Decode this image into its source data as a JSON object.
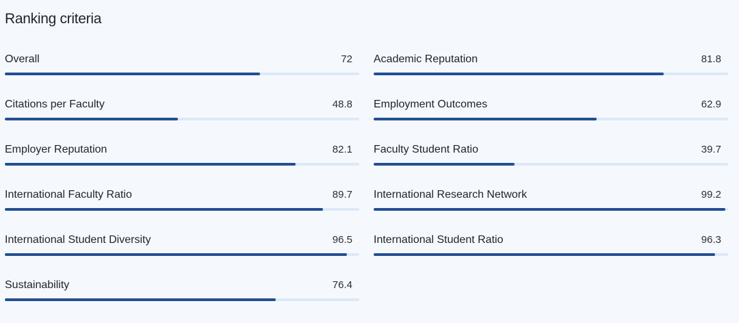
{
  "section": {
    "title": "Ranking criteria"
  },
  "colors": {
    "bar_fill": "#234f93",
    "bar_track": "#dce9f7",
    "background": "#f5f9fe"
  },
  "criteria": [
    {
      "label": "Overall",
      "value": "72",
      "score": 72
    },
    {
      "label": "Academic Reputation",
      "value": "81.8",
      "score": 81.8
    },
    {
      "label": "Citations per Faculty",
      "value": "48.8",
      "score": 48.8
    },
    {
      "label": "Employment Outcomes",
      "value": "62.9",
      "score": 62.9
    },
    {
      "label": "Employer Reputation",
      "value": "82.1",
      "score": 82.1
    },
    {
      "label": "Faculty Student Ratio",
      "value": "39.7",
      "score": 39.7
    },
    {
      "label": "International Faculty Ratio",
      "value": "89.7",
      "score": 89.7
    },
    {
      "label": "International Research Network",
      "value": "99.2",
      "score": 99.2
    },
    {
      "label": "International Student Diversity",
      "value": "96.5",
      "score": 96.5
    },
    {
      "label": "International Student Ratio",
      "value": "96.3",
      "score": 96.3
    },
    {
      "label": "Sustainability",
      "value": "76.4",
      "score": 76.4
    }
  ]
}
